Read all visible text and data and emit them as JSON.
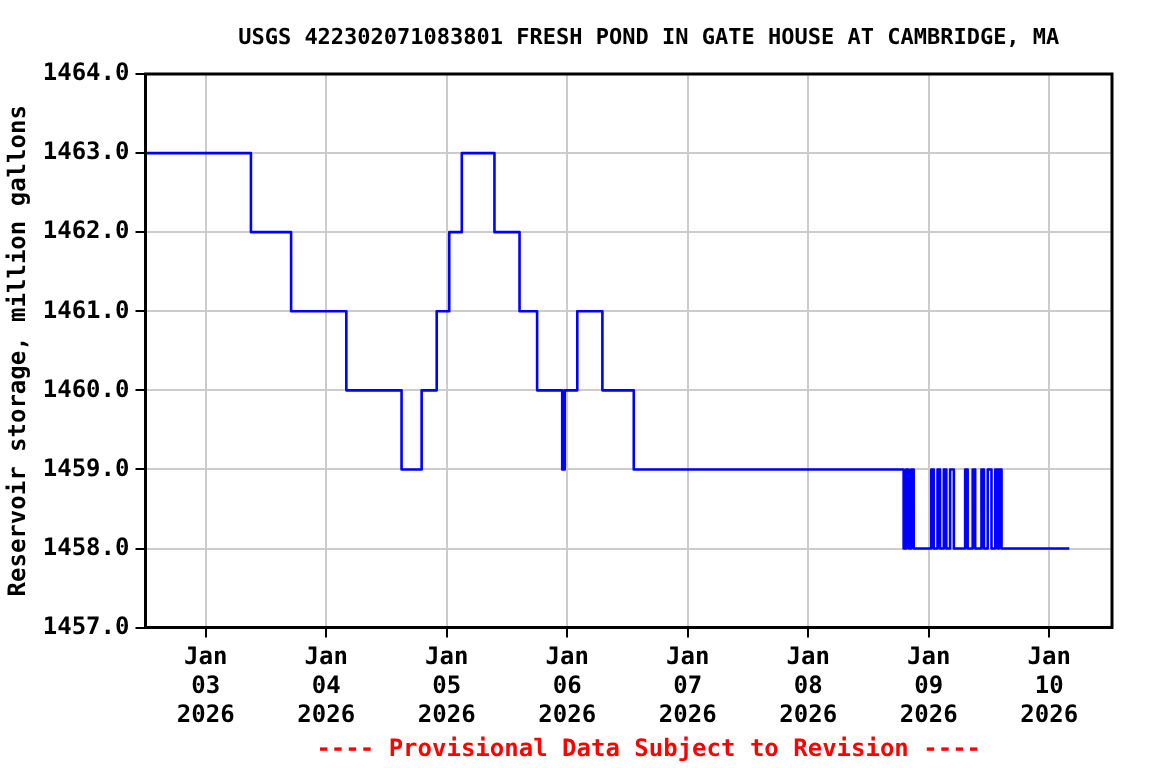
{
  "chart_data": {
    "type": "step",
    "title": "USGS 422302071083801 FRESH POND IN GATE HOUSE AT CAMBRIDGE, MA",
    "ylabel": "Reservoir storage, million gallons",
    "x": [
      "2026-01-02T12:00",
      "2026-01-03T09:00",
      "2026-01-03T17:00",
      "2026-01-04T04:00",
      "2026-01-04T15:00",
      "2026-01-04T19:00",
      "2026-01-04T22:00",
      "2026-01-05T00:30",
      "2026-01-05T03:00",
      "2026-01-05T09:30",
      "2026-01-05T14:30",
      "2026-01-05T18:00",
      "2026-01-05T23:00",
      "2026-01-05T23:30",
      "2026-01-06T02:00",
      "2026-01-06T07:00",
      "2026-01-06T13:15",
      "2026-01-08T19:00",
      "2026-01-08T19:30",
      "2026-01-08T20:00",
      "2026-01-08T20:30",
      "2026-01-08T21:00",
      "2026-01-09T00:30",
      "2026-01-09T01:00",
      "2026-01-09T01:45",
      "2026-01-09T02:15",
      "2026-01-09T03:00",
      "2026-01-09T03:30",
      "2026-01-09T04:15",
      "2026-01-09T05:00",
      "2026-01-09T07:15",
      "2026-01-09T07:45",
      "2026-01-09T08:45",
      "2026-01-09T09:15",
      "2026-01-09T10:30",
      "2026-01-09T11:00",
      "2026-01-09T11:45",
      "2026-01-09T12:30",
      "2026-01-09T13:15",
      "2026-01-09T13:45",
      "2026-01-09T14:00",
      "2026-01-09T14:30",
      "2026-01-10T04:00"
    ],
    "series": [
      {
        "color": "#0000ff",
        "values": [
          1463,
          1462,
          1461,
          1460,
          1459,
          1460,
          1461,
          1462,
          1463,
          1462,
          1461,
          1460,
          1459,
          1460,
          1461,
          1460,
          1459,
          1458,
          1459,
          1458,
          1459,
          1458,
          1459,
          1458,
          1459,
          1458,
          1459,
          1458,
          1459,
          1458,
          1459,
          1458,
          1459,
          1458,
          1459,
          1458,
          1459,
          1458,
          1459,
          1458,
          1459,
          1458,
          1458
        ]
      }
    ],
    "xlim": [
      "2026-01-02T12:00",
      "2026-01-10T12:30"
    ],
    "xticks": [
      {
        "value": "2026-01-03",
        "label": "Jan\n03\n2026"
      },
      {
        "value": "2026-01-04",
        "label": "Jan\n04\n2026"
      },
      {
        "value": "2026-01-05",
        "label": "Jan\n05\n2026"
      },
      {
        "value": "2026-01-06",
        "label": "Jan\n06\n2026"
      },
      {
        "value": "2026-01-07",
        "label": "Jan\n07\n2026"
      },
      {
        "value": "2026-01-08",
        "label": "Jan\n08\n2026"
      },
      {
        "value": "2026-01-09",
        "label": "Jan\n09\n2026"
      },
      {
        "value": "2026-01-10",
        "label": "Jan\n10\n2026"
      }
    ],
    "ylim": [
      1457,
      1464
    ],
    "yticks": [
      {
        "value": 1457,
        "label": "1457.0"
      },
      {
        "value": 1458,
        "label": "1458.0"
      },
      {
        "value": 1459,
        "label": "1459.0"
      },
      {
        "value": 1460,
        "label": "1460.0"
      },
      {
        "value": 1461,
        "label": "1461.0"
      },
      {
        "value": 1462,
        "label": "1462.0"
      },
      {
        "value": 1463,
        "label": "1463.0"
      },
      {
        "value": 1464,
        "label": "1464.0"
      }
    ],
    "grid": true,
    "legend": false,
    "marker": "none",
    "line_style": "solid",
    "annotations": [
      "---- Provisional Data Subject to Revision ----"
    ]
  }
}
